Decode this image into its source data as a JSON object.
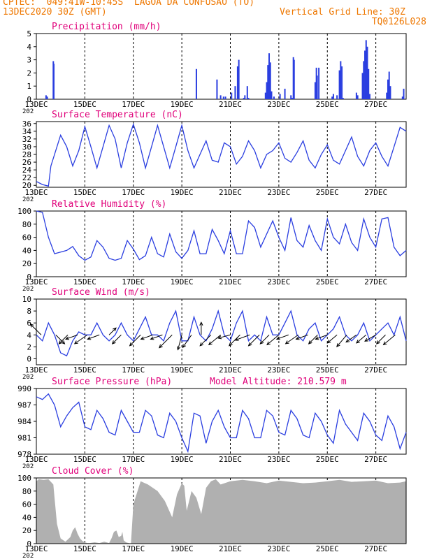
{
  "header": {
    "line1": "CPTEC:  049:41W-10:45S  LAGOA DA CONFUSAO (TO)",
    "line2": "13DEC2020 30Z (GMT)",
    "grid_note": "Vertical Grid Line: 30Z",
    "code": "TQ0126L028"
  },
  "colors": {
    "header": "#ee7700",
    "title": "#e0007a",
    "series": "#2a3ee0",
    "cloud": "#b0b0b0",
    "grid": "#000000"
  },
  "x_axis": {
    "tick_labels": [
      "13DEC",
      "15DEC",
      "17DEC",
      "19DEC",
      "21DEC",
      "23DEC",
      "25DEC",
      "27DEC"
    ],
    "year_fragment": "202"
  },
  "chart_data": [
    {
      "id": "precip",
      "type": "bar",
      "title": "Precipitation (mm/h)",
      "ylim": [
        0,
        5
      ],
      "yticks": [
        0,
        1,
        2,
        3,
        4,
        5
      ],
      "x_unit": "days since 13DEC 00Z",
      "xlim": [
        0,
        15.25
      ],
      "x": [
        0.4,
        0.45,
        0.7,
        0.72,
        6.6,
        7.45,
        7.6,
        7.72,
        7.8,
        8.05,
        8.2,
        8.3,
        8.35,
        8.55,
        8.6,
        8.7,
        8.75,
        9.45,
        9.5,
        9.55,
        9.6,
        9.65,
        9.7,
        9.8,
        10.05,
        10.25,
        10.5,
        10.55,
        10.6,
        10.63,
        11.5,
        11.55,
        11.58,
        11.65,
        12.2,
        12.25,
        12.4,
        12.5,
        12.55,
        12.6,
        12.65,
        13.2,
        13.25,
        13.45,
        13.5,
        13.55,
        13.6,
        13.65,
        13.7,
        13.75,
        14.45,
        14.5,
        14.55,
        14.6,
        15.1,
        15.15
      ],
      "values": [
        0.3,
        0.2,
        2.9,
        2.7,
        2.3,
        1.5,
        0.3,
        0.2,
        0.2,
        0.5,
        1.0,
        2.5,
        3.0,
        0.1,
        0.3,
        1.0,
        0.1,
        0.5,
        1.3,
        2.6,
        3.5,
        2.8,
        0.6,
        0.2,
        0.4,
        0.8,
        0.3,
        0.1,
        3.2,
        3.0,
        1.3,
        2.4,
        1.8,
        2.4,
        0.2,
        0.4,
        0.3,
        2.2,
        2.9,
        2.5,
        0.1,
        0.5,
        0.3,
        2.0,
        2.9,
        3.7,
        4.5,
        4.0,
        2.3,
        0.4,
        0.5,
        1.5,
        2.1,
        1.0,
        0.2,
        0.8
      ]
    },
    {
      "id": "temp",
      "type": "line",
      "title": "Surface Temperature (nC)",
      "ylim": [
        19.5,
        36.5
      ],
      "yticks": [
        20,
        22,
        24,
        26,
        28,
        30,
        32,
        34,
        36
      ],
      "x_unit": "days since 13DEC 00Z",
      "xlim": [
        0,
        15.25
      ],
      "x": [
        0,
        0.25,
        0.5,
        0.6,
        1.0,
        1.25,
        1.5,
        1.75,
        2.0,
        2.25,
        2.5,
        2.75,
        3.0,
        3.25,
        3.5,
        3.75,
        4.0,
        4.25,
        4.5,
        4.75,
        5.0,
        5.25,
        5.5,
        5.75,
        6.0,
        6.25,
        6.5,
        6.75,
        7.0,
        7.25,
        7.5,
        7.75,
        8.0,
        8.25,
        8.5,
        8.75,
        9.0,
        9.25,
        9.5,
        9.75,
        10.0,
        10.25,
        10.5,
        10.75,
        11.0,
        11.25,
        11.5,
        11.75,
        12.0,
        12.25,
        12.5,
        12.75,
        13.0,
        13.25,
        13.5,
        13.75,
        14.0,
        14.25,
        14.5,
        14.75,
        15.0,
        15.25
      ],
      "values": [
        21,
        20.2,
        19.8,
        25,
        33,
        30,
        25,
        29,
        35.2,
        30,
        24.5,
        30,
        35.5,
        32,
        24.5,
        31,
        35.8,
        31,
        24.5,
        30,
        35.5,
        30,
        24.5,
        30,
        35.5,
        29,
        24.5,
        28,
        31.5,
        26.5,
        26,
        31,
        30,
        25.5,
        27.5,
        31.5,
        29,
        24.5,
        28,
        29,
        31,
        27,
        26,
        28.5,
        31.5,
        26.5,
        24.5,
        28,
        30.5,
        26.5,
        25.5,
        29,
        32.5,
        27.5,
        25,
        29,
        31,
        27.5,
        25,
        30,
        35,
        34
      ]
    },
    {
      "id": "rh",
      "type": "line",
      "title": "Relative Humidity (%)",
      "ylim": [
        0,
        100
      ],
      "yticks": [
        0,
        20,
        40,
        60,
        80,
        100
      ],
      "x_unit": "days since 13DEC 00Z",
      "xlim": [
        0,
        15.25
      ],
      "x": [
        0,
        0.25,
        0.5,
        0.75,
        1.25,
        1.5,
        1.75,
        2.0,
        2.25,
        2.5,
        2.75,
        3.0,
        3.25,
        3.5,
        3.75,
        4.0,
        4.25,
        4.5,
        4.75,
        5.0,
        5.25,
        5.5,
        5.75,
        6.0,
        6.25,
        6.5,
        6.75,
        7.0,
        7.25,
        7.5,
        7.75,
        8.0,
        8.25,
        8.5,
        8.75,
        9.0,
        9.25,
        9.5,
        9.75,
        10.0,
        10.25,
        10.5,
        10.75,
        11.0,
        11.25,
        11.5,
        11.75,
        12.0,
        12.25,
        12.5,
        12.75,
        13.0,
        13.25,
        13.5,
        13.75,
        14.0,
        14.25,
        14.5,
        14.75,
        15.0,
        15.25
      ],
      "values": [
        100,
        98,
        60,
        35,
        40,
        46,
        32,
        25,
        30,
        55,
        45,
        28,
        25,
        28,
        55,
        42,
        26,
        32,
        60,
        35,
        30,
        65,
        38,
        28,
        40,
        70,
        35,
        35,
        72,
        55,
        35,
        70,
        35,
        35,
        85,
        75,
        45,
        65,
        85,
        60,
        40,
        90,
        55,
        45,
        78,
        55,
        40,
        88,
        60,
        50,
        80,
        52,
        40,
        88,
        60,
        45,
        88,
        90,
        45,
        32,
        40
      ]
    },
    {
      "id": "wind",
      "type": "line",
      "title": "Surface Wind (m/s)",
      "ylim": [
        -1,
        10
      ],
      "yticks": [
        0,
        2,
        4,
        6,
        8,
        10
      ],
      "x_unit": "days since 13DEC 00Z",
      "xlim": [
        0,
        15.25
      ],
      "x": [
        0,
        0.25,
        0.5,
        0.75,
        1.0,
        1.25,
        1.5,
        1.75,
        2.0,
        2.25,
        2.5,
        2.75,
        3.0,
        3.25,
        3.5,
        3.75,
        4.0,
        4.25,
        4.5,
        4.75,
        5.0,
        5.25,
        5.5,
        5.75,
        6.0,
        6.25,
        6.5,
        6.75,
        7.0,
        7.25,
        7.5,
        7.75,
        8.0,
        8.25,
        8.5,
        8.75,
        9.0,
        9.25,
        9.5,
        9.75,
        10.0,
        10.25,
        10.5,
        10.75,
        11.0,
        11.25,
        11.5,
        11.75,
        12.0,
        12.25,
        12.5,
        12.75,
        13.0,
        13.25,
        13.5,
        13.75,
        14.0,
        14.25,
        14.5,
        14.75,
        15.0,
        15.25
      ],
      "values": [
        4,
        3,
        6,
        4,
        1,
        0.5,
        3,
        4.5,
        4,
        4,
        6,
        4,
        3,
        4,
        6,
        4,
        3,
        5,
        7,
        4,
        4,
        3,
        6,
        8,
        3,
        3,
        7,
        4,
        3,
        5,
        8,
        4,
        3,
        6,
        8,
        3,
        4,
        3,
        7,
        4,
        4,
        6,
        8,
        4,
        3,
        5,
        6,
        3,
        4,
        5,
        7,
        4,
        3,
        4,
        6,
        3,
        4,
        5,
        6,
        4,
        7,
        3
      ],
      "arrows_x": [
        0.2,
        0.8,
        1.3,
        1.7,
        2.1,
        2.6,
        3.0,
        3.5,
        4.3,
        4.8,
        5.2,
        5.6,
        6.0,
        6.4,
        6.8,
        7.2,
        7.6,
        8.0,
        8.4,
        8.8,
        9.2,
        9.6,
        10.0,
        10.4,
        10.8,
        11.2,
        11.6,
        12.0,
        12.4,
        12.8,
        13.2,
        13.6,
        14.0,
        14.4,
        14.8
      ],
      "arrows_dir_deg": [
        135,
        315,
        225,
        200,
        215,
        200,
        45,
        225,
        225,
        200,
        200,
        225,
        255,
        235,
        90,
        225,
        220,
        195,
        225,
        200,
        225,
        225,
        220,
        200,
        215,
        200,
        225,
        200,
        220,
        230,
        215,
        220,
        210,
        225,
        220
      ],
      "arrows_speed": [
        4,
        3,
        3,
        3,
        4,
        3,
        2,
        3,
        4,
        3,
        3,
        5,
        4,
        4,
        3,
        4,
        4,
        3,
        4,
        4,
        4,
        3,
        4,
        3,
        4,
        3,
        3,
        3,
        3,
        4,
        3,
        3,
        3,
        3,
        4
      ]
    },
    {
      "id": "press",
      "type": "line",
      "title": "Surface Pressure (hPa)",
      "annotation": "Model Altitude: 210.579 m",
      "ylim": [
        978,
        990
      ],
      "yticks": [
        978,
        981,
        984,
        987,
        990
      ],
      "x_unit": "days since 13DEC 00Z",
      "xlim": [
        0,
        15.25
      ],
      "x": [
        0,
        0.25,
        0.5,
        0.75,
        1.0,
        1.25,
        1.5,
        1.75,
        2.0,
        2.25,
        2.5,
        2.75,
        3.0,
        3.25,
        3.5,
        3.75,
        4.0,
        4.25,
        4.5,
        4.75,
        5.0,
        5.25,
        5.5,
        5.75,
        6.0,
        6.25,
        6.5,
        6.75,
        7.0,
        7.25,
        7.5,
        7.75,
        8.0,
        8.25,
        8.5,
        8.75,
        9.0,
        9.25,
        9.5,
        9.75,
        10.0,
        10.25,
        10.5,
        10.75,
        11.0,
        11.25,
        11.5,
        11.75,
        12.0,
        12.25,
        12.5,
        12.75,
        13.0,
        13.25,
        13.5,
        13.75,
        14.0,
        14.25,
        14.5,
        14.75,
        15.0,
        15.25
      ],
      "values": [
        988.5,
        988,
        989,
        987,
        983,
        985,
        986.5,
        987.5,
        983,
        982.5,
        986,
        984.5,
        982,
        981.5,
        986,
        984,
        982,
        982,
        986,
        985,
        981.5,
        981,
        985.5,
        984,
        981,
        978.5,
        985.5,
        985,
        980,
        984,
        986,
        983,
        981,
        981,
        986,
        984.5,
        981,
        981,
        986,
        985,
        982,
        981.5,
        986,
        984.5,
        981.5,
        981,
        985.5,
        984,
        981.5,
        980,
        986,
        983.5,
        982,
        980.5,
        985.5,
        984,
        981.5,
        980.5,
        985,
        983,
        979,
        982
      ]
    },
    {
      "id": "cloud",
      "type": "area",
      "title": "Cloud Cover (%)",
      "ylim": [
        0,
        100
      ],
      "yticks": [
        0,
        20,
        40,
        60,
        80,
        100
      ],
      "x_unit": "days since 13DEC 00Z",
      "xlim": [
        0,
        15.25
      ],
      "x": [
        0,
        0.1,
        0.3,
        0.5,
        0.7,
        0.75,
        0.85,
        1.0,
        1.2,
        1.4,
        1.5,
        1.6,
        1.7,
        1.8,
        1.9,
        2.0,
        2.1,
        2.2,
        2.4,
        2.6,
        2.8,
        3.0,
        3.1,
        3.2,
        3.3,
        3.4,
        3.5,
        3.55,
        3.6,
        3.7,
        3.8,
        3.9,
        4.0,
        4.3,
        4.6,
        5.0,
        5.3,
        5.6,
        5.8,
        6.0,
        6.1,
        6.2,
        6.4,
        6.6,
        6.8,
        7.0,
        7.2,
        7.4,
        7.6,
        8.0,
        8.5,
        9.0,
        9.5,
        10.0,
        10.5,
        11.0,
        11.5,
        12.0,
        12.5,
        13.0,
        13.5,
        14.0,
        14.5,
        15.0,
        15.25
      ],
      "values": [
        95,
        98,
        97,
        98,
        90,
        70,
        30,
        8,
        3,
        10,
        20,
        25,
        15,
        8,
        4,
        2,
        1,
        1,
        2,
        1,
        3,
        1,
        8,
        18,
        20,
        10,
        12,
        18,
        5,
        2,
        1,
        0,
        60,
        95,
        90,
        80,
        65,
        40,
        75,
        92,
        88,
        50,
        80,
        70,
        45,
        85,
        95,
        98,
        90,
        95,
        97,
        95,
        92,
        96,
        94,
        92,
        93,
        95,
        97,
        94,
        95,
        96,
        92,
        93,
        95
      ]
    }
  ]
}
